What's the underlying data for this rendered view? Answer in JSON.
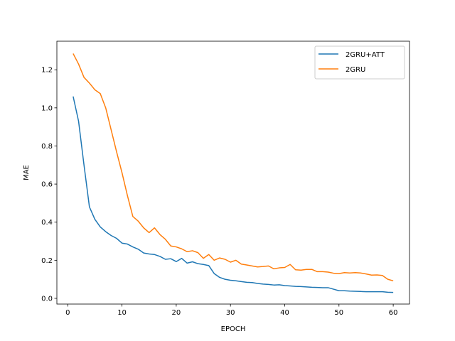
{
  "chart_data": {
    "type": "line",
    "title": "",
    "xlabel": "EPOCH",
    "ylabel": "MAE",
    "xlim": [
      -2,
      63
    ],
    "ylim": [
      -0.03,
      1.35
    ],
    "xticks": [
      0,
      10,
      20,
      30,
      40,
      50,
      60
    ],
    "yticks": [
      0.0,
      0.2,
      0.4,
      0.6,
      0.8,
      1.0,
      1.2
    ],
    "ytick_labels": [
      "0.0",
      "0.2",
      "0.4",
      "0.6",
      "0.8",
      "1.0",
      "1.2"
    ],
    "grid": false,
    "legend_position": "top-right",
    "x": [
      1,
      2,
      3,
      4,
      5,
      6,
      7,
      8,
      9,
      10,
      11,
      12,
      13,
      14,
      15,
      16,
      17,
      18,
      19,
      20,
      21,
      22,
      23,
      24,
      25,
      26,
      27,
      28,
      29,
      30,
      31,
      32,
      33,
      34,
      35,
      36,
      37,
      38,
      39,
      40,
      41,
      42,
      43,
      44,
      45,
      46,
      47,
      48,
      49,
      50,
      51,
      52,
      53,
      54,
      55,
      56,
      57,
      58,
      59,
      60
    ],
    "series": [
      {
        "name": "2GRU+ATT",
        "color": "#1f77b4",
        "values": [
          1.06,
          0.93,
          0.7,
          0.48,
          0.415,
          0.375,
          0.35,
          0.33,
          0.315,
          0.29,
          0.285,
          0.27,
          0.258,
          0.238,
          0.233,
          0.23,
          0.22,
          0.205,
          0.208,
          0.193,
          0.21,
          0.185,
          0.192,
          0.182,
          0.178,
          0.172,
          0.13,
          0.11,
          0.1,
          0.095,
          0.092,
          0.088,
          0.084,
          0.083,
          0.078,
          0.075,
          0.073,
          0.07,
          0.071,
          0.067,
          0.065,
          0.063,
          0.062,
          0.06,
          0.058,
          0.057,
          0.056,
          0.056,
          0.048,
          0.04,
          0.04,
          0.038,
          0.037,
          0.036,
          0.035,
          0.035,
          0.035,
          0.035,
          0.032,
          0.031
        ]
      },
      {
        "name": "2GRU",
        "color": "#ff7f0e",
        "values": [
          1.285,
          1.23,
          1.16,
          1.13,
          1.095,
          1.075,
          1.0,
          0.885,
          0.77,
          0.66,
          0.54,
          0.43,
          0.405,
          0.37,
          0.345,
          0.37,
          0.335,
          0.31,
          0.275,
          0.27,
          0.26,
          0.245,
          0.25,
          0.24,
          0.21,
          0.23,
          0.2,
          0.212,
          0.205,
          0.19,
          0.2,
          0.18,
          0.175,
          0.17,
          0.165,
          0.167,
          0.17,
          0.155,
          0.16,
          0.162,
          0.178,
          0.15,
          0.148,
          0.152,
          0.152,
          0.14,
          0.14,
          0.138,
          0.132,
          0.13,
          0.135,
          0.133,
          0.135,
          0.133,
          0.128,
          0.122,
          0.123,
          0.12,
          0.1,
          0.092
        ]
      }
    ]
  }
}
